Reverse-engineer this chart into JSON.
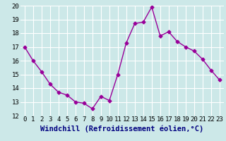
{
  "x": [
    0,
    1,
    2,
    3,
    4,
    5,
    6,
    7,
    8,
    9,
    10,
    11,
    12,
    13,
    14,
    15,
    16,
    17,
    18,
    19,
    20,
    21,
    22,
    23
  ],
  "y": [
    17.0,
    16.0,
    15.2,
    14.3,
    13.7,
    13.5,
    13.0,
    12.9,
    12.5,
    13.4,
    13.1,
    15.0,
    17.3,
    18.7,
    18.8,
    19.9,
    17.8,
    18.1,
    17.4,
    17.0,
    16.7,
    16.1,
    15.3,
    14.6
  ],
  "line_color": "#990099",
  "marker": "D",
  "marker_size": 2.5,
  "bg_color": "#cce8e8",
  "grid_color": "#ffffff",
  "xlabel": "Windchill (Refroidissement éolien,°C)",
  "xlabel_color": "#000080",
  "xlabel_fontsize": 7.5,
  "ylim": [
    12,
    20
  ],
  "xlim": [
    -0.5,
    23.5
  ],
  "yticks": [
    12,
    13,
    14,
    15,
    16,
    17,
    18,
    19,
    20
  ],
  "xticks": [
    0,
    1,
    2,
    3,
    4,
    5,
    6,
    7,
    8,
    9,
    10,
    11,
    12,
    13,
    14,
    15,
    16,
    17,
    18,
    19,
    20,
    21,
    22,
    23
  ],
  "tick_fontsize": 6.5,
  "line_width": 1.0
}
